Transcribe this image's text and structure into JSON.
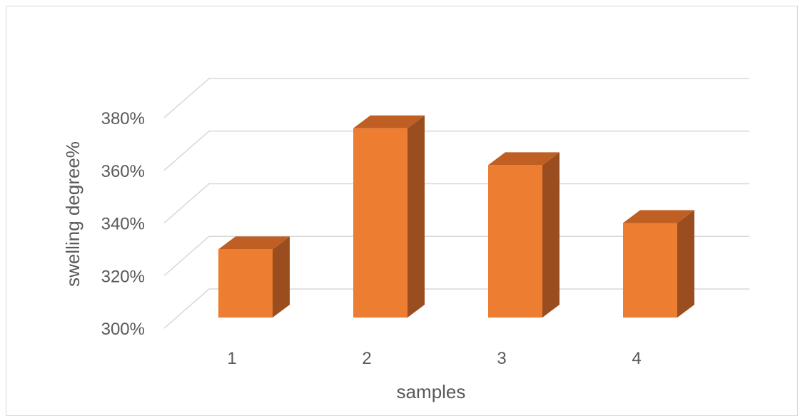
{
  "chart_data": {
    "type": "bar",
    "style": "3d-column",
    "categories": [
      "1",
      "2",
      "3",
      "4"
    ],
    "values": [
      3.3,
      3.76,
      3.62,
      3.4
    ],
    "value_format": "percent",
    "xlabel": "samples",
    "ylabel": "swelling degree%",
    "ylim": [
      3.0,
      3.8
    ],
    "yticks": [
      {
        "value": 3.0,
        "label": "300%"
      },
      {
        "value": 3.2,
        "label": "320%"
      },
      {
        "value": 3.4,
        "label": "340%"
      },
      {
        "value": 3.6,
        "label": "360%"
      },
      {
        "value": 3.8,
        "label": "380%"
      }
    ],
    "grid": true,
    "legend": "none",
    "colors": {
      "bar_front": "#ED7D31",
      "bar_side": "#9A4E1F",
      "bar_top": "#BF5F24",
      "grid": "#d9d9d9",
      "text": "#595959"
    }
  }
}
